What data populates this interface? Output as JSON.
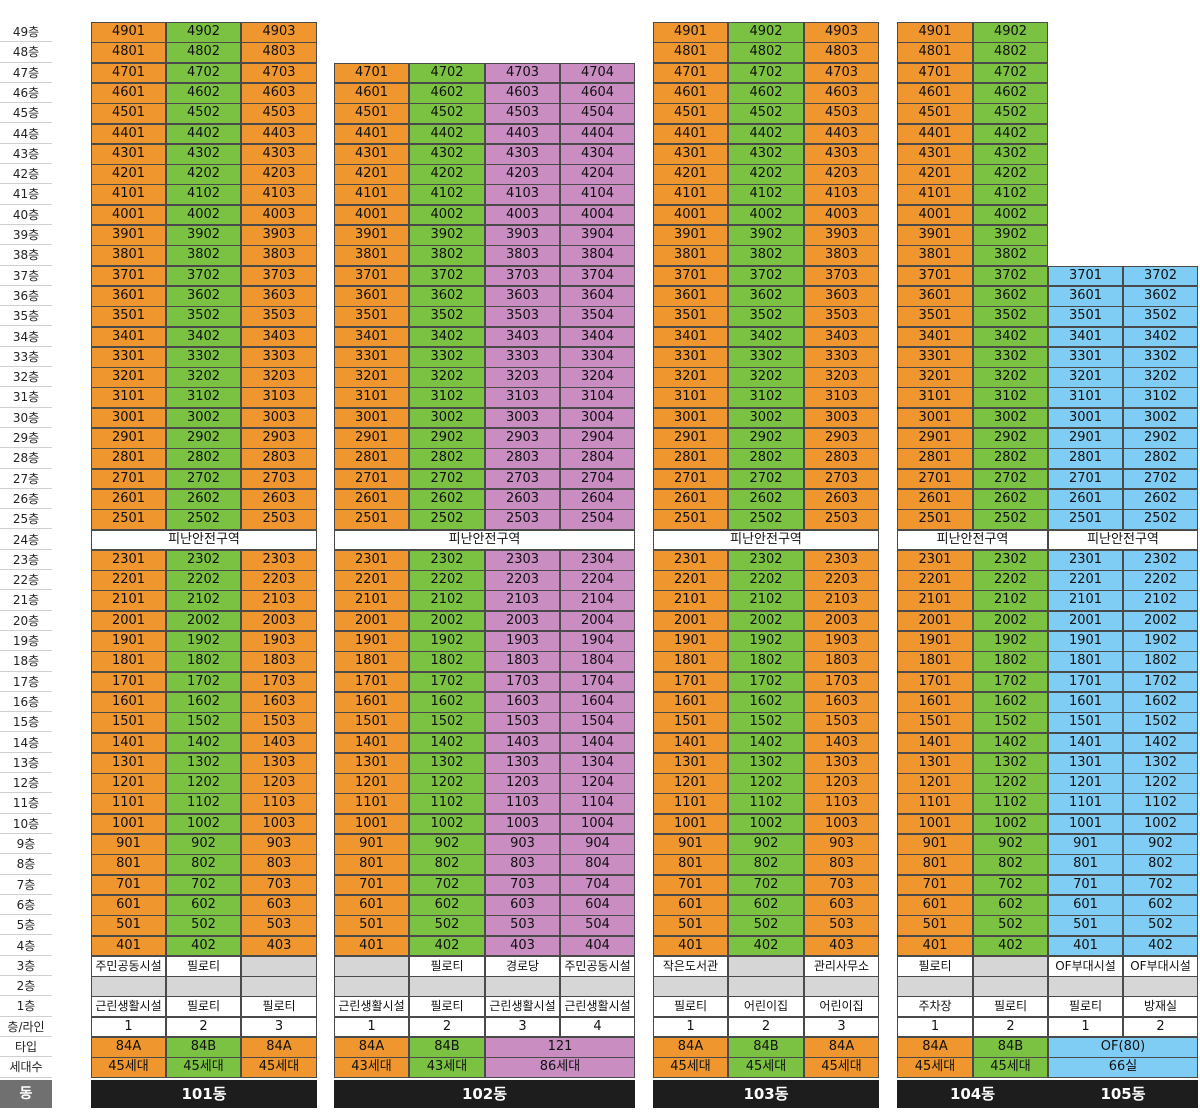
{
  "floor_labels": [
    "49층",
    "48층",
    "47층",
    "46층",
    "45층",
    "44층",
    "43층",
    "42층",
    "41층",
    "40층",
    "39층",
    "38층",
    "37층",
    "36층",
    "35층",
    "34층",
    "33층",
    "32층",
    "31층",
    "30층",
    "29층",
    "28층",
    "27층",
    "26층",
    "25층",
    "24층",
    "23층",
    "22층",
    "21층",
    "20층",
    "19층",
    "18층",
    "17층",
    "16층",
    "15층",
    "14층",
    "13층",
    "12층",
    "11층",
    "10층",
    "9층",
    "8층",
    "7층",
    "6층",
    "5층",
    "4층",
    "3층",
    "2층",
    "1층"
  ],
  "row_labels": {
    "line": "층/라인",
    "type": "타입",
    "households": "세대수",
    "dong": "동"
  },
  "refuge_label": "피난안전구역",
  "colors": {
    "orange": "#f0962e",
    "green": "#7cc242",
    "pink": "#c98dc2",
    "blue": "#7fcdf4",
    "gray": "#d6d6d6",
    "dark": "#1d1d1d"
  },
  "buildings": [
    {
      "name": "101동",
      "top_floor": 49,
      "lines": [
        {
          "no": "1",
          "type": "84A",
          "households": "45세대",
          "color": "orange"
        },
        {
          "no": "2",
          "type": "84B",
          "households": "45세대",
          "color": "green"
        },
        {
          "no": "3",
          "type": "84A",
          "households": "45세대",
          "color": "orange"
        }
      ],
      "floor3": [
        "주민공동시설",
        "필로티",
        ""
      ],
      "floor2": [
        "",
        "",
        ""
      ],
      "floor1": [
        "근린생활시설",
        "필로티",
        "필로티"
      ]
    },
    {
      "name": "102동",
      "top_floor": 47,
      "lines": [
        {
          "no": "1",
          "type": "84A",
          "households": "43세대",
          "color": "orange"
        },
        {
          "no": "2",
          "type": "84B",
          "households": "43세대",
          "color": "green"
        },
        {
          "no": "3",
          "color": "pink"
        },
        {
          "no": "4",
          "color": "pink"
        }
      ],
      "merged_type": {
        "from": 2,
        "span": 2,
        "type": "121",
        "households": "86세대",
        "color": "pink"
      },
      "floor3": [
        "",
        "필로티",
        "경로당",
        "주민공동시설"
      ],
      "floor2": [
        "",
        "",
        "",
        ""
      ],
      "floor1": [
        "근린생활시설",
        "필로티",
        "근린생활시설",
        "근린생활시설"
      ]
    },
    {
      "name": "103동",
      "top_floor": 49,
      "lines": [
        {
          "no": "1",
          "type": "84A",
          "households": "45세대",
          "color": "orange"
        },
        {
          "no": "2",
          "type": "84B",
          "households": "45세대",
          "color": "green"
        },
        {
          "no": "3",
          "type": "84A",
          "households": "45세대",
          "color": "orange"
        }
      ],
      "floor3": [
        "작은도서관",
        "",
        "관리사무소"
      ],
      "floor2": [
        "",
        "",
        ""
      ],
      "floor1": [
        "필로티",
        "어린이집",
        "어린이집"
      ]
    },
    {
      "name": "104동",
      "top_floor": 49,
      "lines": [
        {
          "no": "1",
          "type": "84A",
          "households": "45세대",
          "color": "orange"
        },
        {
          "no": "2",
          "type": "84B",
          "households": "45세대",
          "color": "green"
        }
      ],
      "floor3": [
        "필로티",
        ""
      ],
      "floor2": [
        "",
        ""
      ],
      "floor1": [
        "주차장",
        "필로티"
      ]
    },
    {
      "name": "105동",
      "top_floor": 37,
      "lines": [
        {
          "no": "1",
          "color": "blue"
        },
        {
          "no": "2",
          "color": "blue"
        }
      ],
      "merged_type": {
        "from": 0,
        "span": 2,
        "type": "OF(80)",
        "households": "66실",
        "color": "blue"
      },
      "floor3": [
        "OF부대시설",
        "OF부대시설"
      ],
      "floor2": [
        "",
        ""
      ],
      "floor1": [
        "필로티",
        "방재실"
      ]
    }
  ]
}
